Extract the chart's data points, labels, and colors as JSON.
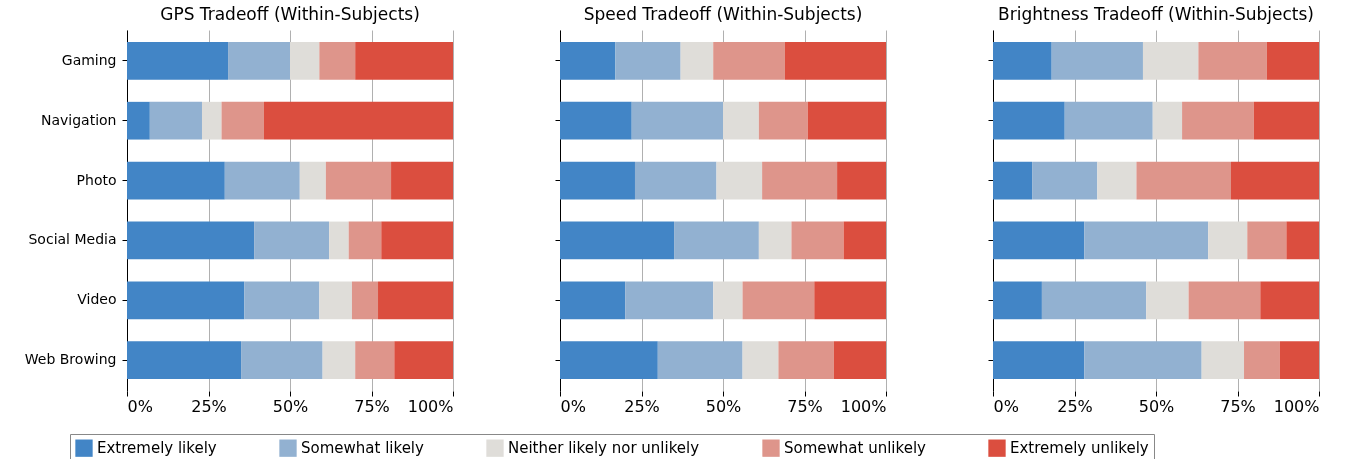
{
  "chart_data": [
    {
      "type": "bar",
      "title": "GPS Tradeoff (Within-Subjects)",
      "orientation": "horizontal",
      "stacked": true,
      "categories": [
        "Gaming",
        "Navigation",
        "Photo",
        "Social Media",
        "Video",
        "Web Browing"
      ],
      "xlim": [
        0,
        100
      ],
      "xticks": [
        {
          "value": 0,
          "label": "0%"
        },
        {
          "value": 25,
          "label": "25%"
        },
        {
          "value": 50,
          "label": "50%"
        },
        {
          "value": 75,
          "label": "75%"
        },
        {
          "value": 100,
          "label": "100%"
        }
      ],
      "grid": "x",
      "legend": "bottom",
      "series": [
        {
          "name": "Extremely likely",
          "color": "#4285c6",
          "values": [
            31,
            7,
            30,
            39,
            36,
            35
          ]
        },
        {
          "name": "Somewhat likely",
          "color": "#92b1d1",
          "values": [
            19,
            16,
            23,
            23,
            23,
            25
          ]
        },
        {
          "name": "Neither likely nor unlikely",
          "color": "#dfddd9",
          "values": [
            9,
            6,
            8,
            6,
            10,
            10
          ]
        },
        {
          "name": "Somewhat unlikely",
          "color": "#de958b",
          "values": [
            11,
            13,
            20,
            10,
            8,
            12
          ]
        },
        {
          "name": "Extremely unlikely",
          "color": "#db4e3f",
          "values": [
            30,
            58,
            19,
            22,
            23,
            18
          ]
        }
      ]
    },
    {
      "type": "bar",
      "title": "Speed Tradeoff (Within-Subjects)",
      "orientation": "horizontal",
      "stacked": true,
      "tick_labels": "x",
      "categories": [
        "Gaming",
        "Navigation",
        "Photo",
        "Social Media",
        "Video",
        "Web Browing"
      ],
      "xlim": [
        0,
        100
      ],
      "xticks": [
        {
          "value": 0,
          "label": "0%"
        },
        {
          "value": 25,
          "label": "25%"
        },
        {
          "value": 50,
          "label": "50%"
        },
        {
          "value": 75,
          "label": "75%"
        },
        {
          "value": 100,
          "label": "100%"
        }
      ],
      "grid": "x",
      "series": [
        {
          "color": "#4285c6",
          "values": [
            17,
            22,
            23,
            35,
            20,
            30
          ]
        },
        {
          "color": "#92b1d1",
          "values": [
            20,
            28,
            25,
            26,
            27,
            26
          ]
        },
        {
          "color": "#dfddd9",
          "values": [
            10,
            11,
            14,
            10,
            9,
            11
          ]
        },
        {
          "color": "#de958b",
          "values": [
            22,
            15,
            23,
            16,
            22,
            17
          ]
        },
        {
          "color": "#db4e3f",
          "values": [
            31,
            24,
            15,
            13,
            22,
            16
          ]
        }
      ]
    },
    {
      "type": "bar",
      "title": "Brightness Tradeoff (Within-Subjects)",
      "orientation": "horizontal",
      "stacked": true,
      "tick_labels": "x",
      "categories": [
        "Gaming",
        "Navigation",
        "Photo",
        "Social Media",
        "Video",
        "Web Browing"
      ],
      "xlim": [
        0,
        100
      ],
      "xticks": [
        {
          "value": 0,
          "label": "0%"
        },
        {
          "value": 25,
          "label": "25%"
        },
        {
          "value": 50,
          "label": "50%"
        },
        {
          "value": 75,
          "label": "75%"
        },
        {
          "value": 100,
          "label": "100%"
        }
      ],
      "grid": "x",
      "series": [
        {
          "color": "#4285c6",
          "values": [
            18,
            22,
            12,
            28,
            15,
            28
          ]
        },
        {
          "color": "#92b1d1",
          "values": [
            28,
            27,
            20,
            38,
            32,
            36
          ]
        },
        {
          "color": "#dfddd9",
          "values": [
            17,
            9,
            12,
            12,
            13,
            13
          ]
        },
        {
          "color": "#de958b",
          "values": [
            21,
            22,
            29,
            12,
            22,
            11
          ]
        },
        {
          "color": "#db4e3f",
          "values": [
            16,
            20,
            27,
            10,
            18,
            12
          ]
        }
      ]
    }
  ]
}
